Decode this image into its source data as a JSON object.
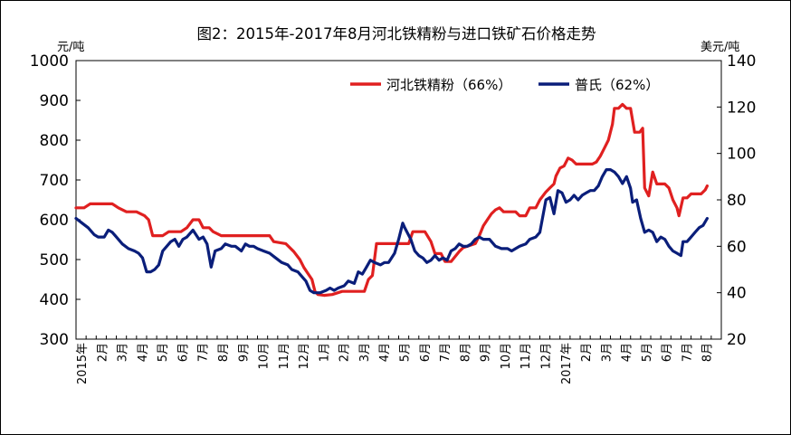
{
  "chart_data": {
    "type": "line",
    "title": "图2：2015年-2017年8月河北铁精粉与进口铁矿石价格走势",
    "y_left_unit": "元/吨",
    "y_right_unit": "美元/吨",
    "y_left_range": [
      300,
      1000
    ],
    "y_left_ticks": [
      "1000",
      "900",
      "800",
      "700",
      "600",
      "500",
      "400",
      "300"
    ],
    "y_right_range": [
      20,
      140
    ],
    "y_right_ticks": [
      "140",
      "120",
      "100",
      "80",
      "60",
      "40",
      "20"
    ],
    "x_labels": [
      "2015年",
      "2月",
      "3月",
      "4月",
      "5月",
      "6月",
      "7月",
      "8月",
      "9月",
      "10月",
      "11月",
      "12月",
      "1月",
      "2月",
      "3月",
      "4月",
      "5月",
      "6月",
      "7月",
      "8月",
      "9月",
      "10月",
      "11月",
      "12月",
      "2017年",
      "2月",
      "3月",
      "4月",
      "5月",
      "6月",
      "7月",
      "8月"
    ],
    "x_range": [
      0,
      32
    ],
    "x_label_positions": [
      0,
      1,
      2,
      3,
      4,
      5,
      6,
      7,
      8,
      9,
      10,
      11,
      12,
      13,
      14,
      15,
      16,
      17,
      18,
      19,
      20,
      21,
      22,
      23,
      24,
      25,
      26,
      27,
      28,
      29,
      30,
      31
    ],
    "legend_position": "top-right",
    "series": [
      {
        "name": "河北铁精粉（66%）",
        "axis": "left",
        "color": "#e02020",
        "points": [
          [
            0,
            630
          ],
          [
            0.4,
            630
          ],
          [
            0.7,
            640
          ],
          [
            1,
            640
          ],
          [
            1.4,
            640
          ],
          [
            1.8,
            640
          ],
          [
            2.1,
            630
          ],
          [
            2.5,
            620
          ],
          [
            3,
            620
          ],
          [
            3.4,
            610
          ],
          [
            3.6,
            600
          ],
          [
            3.8,
            560
          ],
          [
            4.3,
            560
          ],
          [
            4.6,
            570
          ],
          [
            5.2,
            570
          ],
          [
            5.5,
            580
          ],
          [
            5.8,
            600
          ],
          [
            6.1,
            600
          ],
          [
            6.3,
            580
          ],
          [
            6.6,
            580
          ],
          [
            6.8,
            570
          ],
          [
            7.2,
            560
          ],
          [
            9.2,
            560
          ],
          [
            9.6,
            560
          ],
          [
            9.8,
            545
          ],
          [
            10.4,
            540
          ],
          [
            10.8,
            520
          ],
          [
            11.1,
            500
          ],
          [
            11.3,
            480
          ],
          [
            11.5,
            465
          ],
          [
            11.7,
            450
          ],
          [
            11.85,
            420
          ],
          [
            12,
            412
          ],
          [
            12.3,
            410
          ],
          [
            12.7,
            412
          ],
          [
            13.2,
            420
          ],
          [
            14.3,
            420
          ],
          [
            14.5,
            450
          ],
          [
            14.7,
            460
          ],
          [
            14.9,
            540
          ],
          [
            15.3,
            540
          ],
          [
            16.5,
            540
          ],
          [
            16.7,
            570
          ],
          [
            17.3,
            570
          ],
          [
            17.6,
            545
          ],
          [
            17.8,
            515
          ],
          [
            18.1,
            515
          ],
          [
            18.3,
            495
          ],
          [
            18.6,
            495
          ],
          [
            19,
            520
          ],
          [
            19.2,
            530
          ],
          [
            19.8,
            540
          ],
          [
            20,
            560
          ],
          [
            20.2,
            585
          ],
          [
            20.4,
            600
          ],
          [
            20.6,
            615
          ],
          [
            20.8,
            625
          ],
          [
            21,
            630
          ],
          [
            21.2,
            620
          ],
          [
            21.8,
            620
          ],
          [
            22,
            610
          ],
          [
            22.3,
            610
          ],
          [
            22.5,
            630
          ],
          [
            22.8,
            630
          ],
          [
            23,
            650
          ],
          [
            23.3,
            670
          ],
          [
            23.5,
            680
          ],
          [
            23.7,
            690
          ],
          [
            23.8,
            710
          ],
          [
            24,
            730
          ],
          [
            24.2,
            735
          ],
          [
            24.4,
            755
          ],
          [
            24.6,
            750
          ],
          [
            24.8,
            740
          ],
          [
            25.6,
            740
          ],
          [
            25.8,
            745
          ],
          [
            26,
            760
          ],
          [
            26.2,
            780
          ],
          [
            26.4,
            800
          ],
          [
            26.6,
            840
          ],
          [
            26.7,
            880
          ],
          [
            26.9,
            880
          ],
          [
            27.1,
            890
          ],
          [
            27.3,
            880
          ],
          [
            27.5,
            880
          ],
          [
            27.7,
            820
          ],
          [
            27.95,
            820
          ],
          [
            28.1,
            830
          ],
          [
            28.2,
            680
          ],
          [
            28.4,
            660
          ],
          [
            28.6,
            720
          ],
          [
            28.8,
            690
          ],
          [
            29.2,
            690
          ],
          [
            29.4,
            680
          ],
          [
            29.6,
            650
          ],
          [
            29.8,
            630
          ],
          [
            29.9,
            610
          ],
          [
            30.1,
            655
          ],
          [
            30.3,
            655
          ],
          [
            30.5,
            665
          ],
          [
            31,
            665
          ],
          [
            31.2,
            675
          ],
          [
            31.3,
            685
          ]
        ]
      },
      {
        "name": "普氏（62%）",
        "axis": "right",
        "color": "#0a1e7a",
        "points": [
          [
            0,
            72
          ],
          [
            0.3,
            70
          ],
          [
            0.6,
            68
          ],
          [
            0.9,
            65
          ],
          [
            1.1,
            64
          ],
          [
            1.4,
            64
          ],
          [
            1.6,
            67
          ],
          [
            1.8,
            66
          ],
          [
            2,
            64
          ],
          [
            2.3,
            61
          ],
          [
            2.6,
            59
          ],
          [
            2.9,
            58
          ],
          [
            3.1,
            57
          ],
          [
            3.3,
            55
          ],
          [
            3.5,
            49
          ],
          [
            3.7,
            49
          ],
          [
            3.9,
            50
          ],
          [
            4.1,
            52
          ],
          [
            4.3,
            58
          ],
          [
            4.5,
            60
          ],
          [
            4.7,
            62
          ],
          [
            4.9,
            63
          ],
          [
            5.1,
            60
          ],
          [
            5.3,
            63
          ],
          [
            5.5,
            64
          ],
          [
            5.7,
            66
          ],
          [
            5.8,
            67
          ],
          [
            6.1,
            63
          ],
          [
            6.3,
            64
          ],
          [
            6.5,
            61
          ],
          [
            6.7,
            51
          ],
          [
            6.9,
            58
          ],
          [
            7.2,
            59
          ],
          [
            7.4,
            61
          ],
          [
            7.7,
            60
          ],
          [
            7.9,
            60
          ],
          [
            8.2,
            58
          ],
          [
            8.4,
            61
          ],
          [
            8.6,
            60
          ],
          [
            8.8,
            60
          ],
          [
            9,
            59
          ],
          [
            9.3,
            58
          ],
          [
            9.6,
            57
          ],
          [
            9.9,
            55
          ],
          [
            10.2,
            53
          ],
          [
            10.5,
            52
          ],
          [
            10.7,
            50
          ],
          [
            11,
            49
          ],
          [
            11.2,
            47
          ],
          [
            11.4,
            45
          ],
          [
            11.6,
            41
          ],
          [
            11.8,
            40
          ],
          [
            12.1,
            40
          ],
          [
            12.4,
            41
          ],
          [
            12.6,
            42
          ],
          [
            12.8,
            41
          ],
          [
            13,
            42
          ],
          [
            13.3,
            43
          ],
          [
            13.5,
            45
          ],
          [
            13.8,
            44
          ],
          [
            14,
            49
          ],
          [
            14.2,
            48
          ],
          [
            14.4,
            51
          ],
          [
            14.6,
            54
          ],
          [
            14.8,
            53
          ],
          [
            15.1,
            52
          ],
          [
            15.3,
            53
          ],
          [
            15.5,
            53
          ],
          [
            15.8,
            57
          ],
          [
            16,
            63
          ],
          [
            16.2,
            70
          ],
          [
            16.3,
            68
          ],
          [
            16.6,
            63
          ],
          [
            16.8,
            58
          ],
          [
            17,
            56
          ],
          [
            17.2,
            55
          ],
          [
            17.4,
            53
          ],
          [
            17.6,
            54
          ],
          [
            17.8,
            56
          ],
          [
            18,
            54
          ],
          [
            18.2,
            55
          ],
          [
            18.4,
            54
          ],
          [
            18.6,
            58
          ],
          [
            18.8,
            59
          ],
          [
            19,
            61
          ],
          [
            19.2,
            60
          ],
          [
            19.4,
            60
          ],
          [
            19.6,
            61
          ],
          [
            19.8,
            63
          ],
          [
            20,
            64
          ],
          [
            20.2,
            63
          ],
          [
            20.5,
            63
          ],
          [
            20.8,
            60
          ],
          [
            21.1,
            59
          ],
          [
            21.4,
            59
          ],
          [
            21.6,
            58
          ],
          [
            21.8,
            59
          ],
          [
            22,
            60
          ],
          [
            22.3,
            61
          ],
          [
            22.5,
            63
          ],
          [
            22.8,
            64
          ],
          [
            23,
            66
          ],
          [
            23.3,
            80
          ],
          [
            23.5,
            81
          ],
          [
            23.7,
            74
          ],
          [
            23.9,
            84
          ],
          [
            24.1,
            83
          ],
          [
            24.3,
            79
          ],
          [
            24.5,
            80
          ],
          [
            24.7,
            82
          ],
          [
            24.9,
            80
          ],
          [
            25.1,
            82
          ],
          [
            25.3,
            83
          ],
          [
            25.5,
            84
          ],
          [
            25.7,
            84
          ],
          [
            25.9,
            86
          ],
          [
            26.1,
            90
          ],
          [
            26.3,
            93
          ],
          [
            26.5,
            93
          ],
          [
            26.7,
            92
          ],
          [
            26.9,
            90
          ],
          [
            27.1,
            87
          ],
          [
            27.3,
            90
          ],
          [
            27.5,
            85
          ],
          [
            27.6,
            79
          ],
          [
            27.8,
            80
          ],
          [
            28,
            72
          ],
          [
            28.2,
            66
          ],
          [
            28.4,
            67
          ],
          [
            28.6,
            66
          ],
          [
            28.8,
            62
          ],
          [
            29,
            64
          ],
          [
            29.2,
            63
          ],
          [
            29.4,
            60
          ],
          [
            29.6,
            58
          ],
          [
            29.8,
            57
          ],
          [
            30,
            56
          ],
          [
            30.1,
            62
          ],
          [
            30.3,
            62
          ],
          [
            30.5,
            64
          ],
          [
            30.7,
            66
          ],
          [
            30.9,
            68
          ],
          [
            31.1,
            69
          ],
          [
            31.3,
            72
          ]
        ]
      }
    ]
  }
}
